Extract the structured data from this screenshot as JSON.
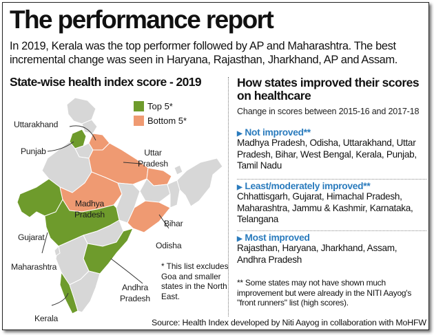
{
  "title": "The performance report",
  "intro": "In 2019, Kerala was the top performer followed by AP and Maharashtra. The best incremental change was seen in Haryana, Rajasthan, Jharkhand, AP and Assam.",
  "left_heading": "State-wise health index score - 2019",
  "legend": [
    {
      "label": "Top 5*",
      "color": "#6e9b2c"
    },
    {
      "label": "Bottom 5*",
      "color": "#ef9a72"
    }
  ],
  "map_labels": {
    "uttarakhand": "Uttarakhand",
    "punjab": "Punjab",
    "uttar_pradesh": "Uttar Pradesh",
    "madhya_pradesh": "Madhya Pradesh",
    "bihar": "Bihar",
    "gujarat": "Gujarat",
    "odisha": "Odisha",
    "maharashtra": "Maharashtra",
    "andhra_pradesh": "Andhra Pradesh",
    "kerala": "Kerala"
  },
  "map_footnote": "* This list excludes Goa and smaller states in the North East.",
  "right_heading": "How states improved their scores on healthcare",
  "subtitle": "Change in scores between 2015-16 and 2017-18",
  "groups": [
    {
      "heading": "Not improved**",
      "states": "Madhya Pradesh, Odisha, Uttarakhand, Uttar Pradesh, Bihar, West Bengal, Kerala, Punjab, Tamil Nadu"
    },
    {
      "heading": "Least/moderately improved**",
      "states": "Chhattisgarh, Gujarat, Himachal Pradesh, Maharashtra, Jammu & Kashmir, Karnataka, Telangana"
    },
    {
      "heading": "Most improved",
      "states": "Rajasthan, Haryana, Jharkhand, Assam, Andhra Pradesh"
    }
  ],
  "note": "** Some states may not have shown much improvement but were already in the NITI Aayog's \"front runners\" list (high scores).",
  "source": "Source: Health Index developed by Niti Aayog in collaboration with MoHFW",
  "colors": {
    "top": "#6e9b2c",
    "bottom": "#ef9a72",
    "neutral": "#d7d7d7",
    "accent": "#2a7bbd"
  }
}
